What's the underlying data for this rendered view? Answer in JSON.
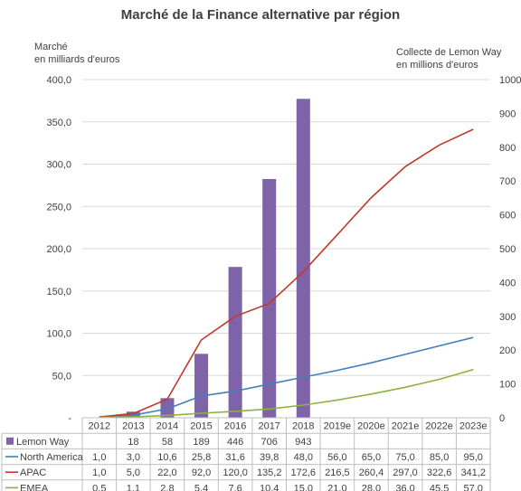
{
  "title": "Marché de la Finance alternative par région",
  "left_axis_label": [
    "Marché",
    "en milliards d'euros"
  ],
  "right_axis_label": [
    "Collecte de Lemon Way",
    "en millions d'euros"
  ],
  "colors": {
    "lemon_way": "#7f63a8",
    "north_america": "#3f7fbd",
    "apac": "#c0392b",
    "emea": "#8db33b",
    "grid": "#d9d9d9",
    "axis": "#bfbfbf",
    "text": "#404040"
  },
  "chart_data": {
    "type": "bar+line",
    "title": "Marché de la Finance alternative par région",
    "categories": [
      "2012",
      "2013",
      "2014",
      "2015",
      "2016",
      "2017",
      "2018",
      "2019e",
      "2020e",
      "2021e",
      "2022e",
      "2023e"
    ],
    "left_axis": {
      "label": "Marché en milliards d'euros",
      "ylim": [
        0,
        400
      ],
      "ticks": [
        "-",
        "50,0",
        "100,0",
        "150,0",
        "200,0",
        "250,0",
        "300,0",
        "350,0",
        "400,0"
      ],
      "tick_values": [
        0,
        50,
        100,
        150,
        200,
        250,
        300,
        350,
        400
      ]
    },
    "right_axis": {
      "label": "Collecte de Lemon Way en millions d'euros",
      "ylim": [
        0,
        1000
      ],
      "ticks": [
        "0",
        "100",
        "200",
        "300",
        "400",
        "500",
        "600",
        "700",
        "800",
        "900",
        "1000"
      ],
      "tick_values": [
        0,
        100,
        200,
        300,
        400,
        500,
        600,
        700,
        800,
        900,
        1000
      ]
    },
    "grid": true,
    "legend": "data-table",
    "series": [
      {
        "name": "Lemon Way",
        "type": "bar",
        "axis": "right",
        "color": "#7f63a8",
        "values": [
          null,
          18,
          58,
          189,
          446,
          706,
          943,
          null,
          null,
          null,
          null,
          null
        ],
        "table": [
          "",
          "18",
          "58",
          "189",
          "446",
          "706",
          "943",
          "",
          "",
          "",
          "",
          ""
        ]
      },
      {
        "name": "North America",
        "type": "line",
        "axis": "left",
        "color": "#3f7fbd",
        "values": [
          1.0,
          3.0,
          10.6,
          25.8,
          31.6,
          39.8,
          48.0,
          56.0,
          65.0,
          75.0,
          85.0,
          95.0
        ],
        "table": [
          "1,0",
          "3,0",
          "10,6",
          "25,8",
          "31,6",
          "39,8",
          "48,0",
          "56,0",
          "65,0",
          "75,0",
          "85,0",
          "95,0"
        ]
      },
      {
        "name": "APAC",
        "type": "line",
        "axis": "left",
        "color": "#c0392b",
        "values": [
          1.0,
          5.0,
          22.0,
          92.0,
          120.0,
          135.2,
          172.6,
          216.5,
          260.4,
          297.0,
          322.6,
          341.2
        ],
        "table": [
          "1,0",
          "5,0",
          "22,0",
          "92,0",
          "120,0",
          "135,2",
          "172,6",
          "216,5",
          "260,4",
          "297,0",
          "322,6",
          "341,2"
        ]
      },
      {
        "name": "EMEA",
        "type": "line",
        "axis": "left",
        "color": "#8db33b",
        "values": [
          0.5,
          1.1,
          2.8,
          5.4,
          7.6,
          10.4,
          15.0,
          21.0,
          28.0,
          36.0,
          45.5,
          57.0
        ],
        "table": [
          "0,5",
          "1,1",
          "2,8",
          "5,4",
          "7,6",
          "10,4",
          "15,0",
          "21,0",
          "28,0",
          "36,0",
          "45,5",
          "57,0"
        ]
      }
    ]
  }
}
